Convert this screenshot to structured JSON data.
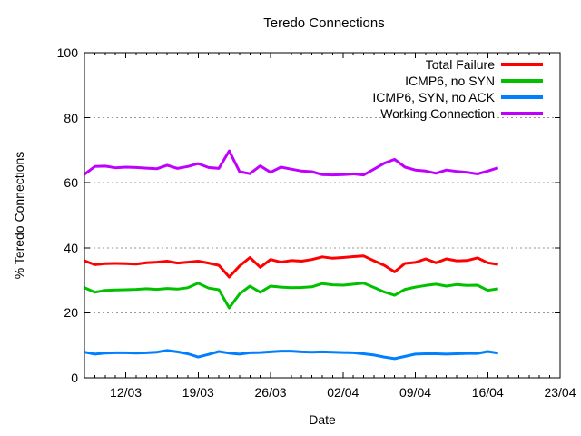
{
  "chart_data": {
    "type": "line",
    "title": "Teredo Connections",
    "xlabel": "Date",
    "ylabel": "% Teredo Connections",
    "ylim": [
      0,
      100
    ],
    "y_ticks": [
      0,
      20,
      40,
      60,
      80,
      100
    ],
    "x_tick_labels": [
      "12/03",
      "19/03",
      "26/03",
      "02/04",
      "09/04",
      "16/04",
      "23/04"
    ],
    "x_tick_days": [
      4,
      11,
      18,
      25,
      32,
      39,
      46
    ],
    "x_range_days": [
      0,
      46
    ],
    "x_minor_tick_step_days": 1,
    "grid": "horizontal dotted lines at 20, 40, 60, 80",
    "legend_position": "top-right-inside",
    "colors": {
      "background": "#ffffff",
      "axis": "#000000",
      "grid": "#999999",
      "red": "#ff0000",
      "green": "#00c000",
      "blue": "#0080ff",
      "purple": "#c000ff"
    },
    "x_days": [
      0,
      1,
      2,
      3,
      4,
      5,
      6,
      7,
      8,
      9,
      10,
      11,
      12,
      13,
      14,
      15,
      16,
      17,
      18,
      19,
      20,
      21,
      22,
      23,
      24,
      25,
      26,
      27,
      28,
      29,
      30,
      31,
      32,
      33,
      34,
      35,
      36,
      37,
      38,
      39,
      40
    ],
    "series": [
      {
        "name": "Total Failure",
        "color": "#ff0000",
        "values": [
          36.0,
          34.8,
          35.1,
          35.2,
          35.1,
          35.0,
          35.4,
          35.6,
          35.9,
          35.3,
          35.6,
          35.9,
          35.3,
          34.6,
          31.0,
          34.4,
          37.0,
          34.0,
          36.4,
          35.6,
          36.1,
          35.9,
          36.4,
          37.2,
          36.8,
          37.0,
          37.3,
          37.5,
          36.0,
          34.6,
          32.6,
          35.2,
          35.5,
          36.6,
          35.4,
          36.6,
          36.0,
          36.1,
          36.9,
          35.4,
          34.9
        ]
      },
      {
        "name": "ICMP6, no SYN",
        "color": "#00c000",
        "values": [
          27.7,
          26.3,
          26.9,
          27.0,
          27.1,
          27.2,
          27.4,
          27.2,
          27.5,
          27.3,
          27.7,
          29.1,
          27.6,
          27.1,
          21.5,
          25.8,
          28.2,
          26.3,
          28.2,
          27.9,
          27.7,
          27.8,
          28.0,
          29.0,
          28.6,
          28.5,
          28.8,
          29.1,
          27.8,
          26.4,
          25.4,
          27.2,
          27.9,
          28.4,
          28.8,
          28.2,
          28.7,
          28.4,
          28.5,
          26.9,
          27.4
        ]
      },
      {
        "name": "ICMP6, SYN, no ACK",
        "color": "#0080ff",
        "values": [
          7.9,
          7.3,
          7.6,
          7.7,
          7.7,
          7.6,
          7.7,
          7.9,
          8.4,
          8.0,
          7.4,
          6.4,
          7.2,
          8.1,
          7.6,
          7.3,
          7.7,
          7.8,
          8.0,
          8.2,
          8.2,
          8.0,
          7.9,
          8.0,
          7.9,
          7.8,
          7.7,
          7.4,
          7.0,
          6.4,
          5.9,
          6.6,
          7.3,
          7.4,
          7.4,
          7.3,
          7.4,
          7.5,
          7.5,
          8.1,
          7.6
        ]
      },
      {
        "name": "Working Connection",
        "color": "#c000ff",
        "values": [
          62.6,
          65.0,
          65.1,
          64.6,
          64.8,
          64.7,
          64.5,
          64.3,
          65.4,
          64.4,
          65.0,
          65.9,
          64.7,
          64.4,
          69.8,
          63.4,
          62.8,
          65.2,
          63.2,
          64.8,
          64.2,
          63.6,
          63.4,
          62.5,
          62.4,
          62.5,
          62.7,
          62.4,
          64.2,
          66.0,
          67.2,
          64.8,
          63.9,
          63.6,
          62.9,
          63.9,
          63.5,
          63.2,
          62.7,
          63.6,
          64.6
        ]
      }
    ]
  }
}
